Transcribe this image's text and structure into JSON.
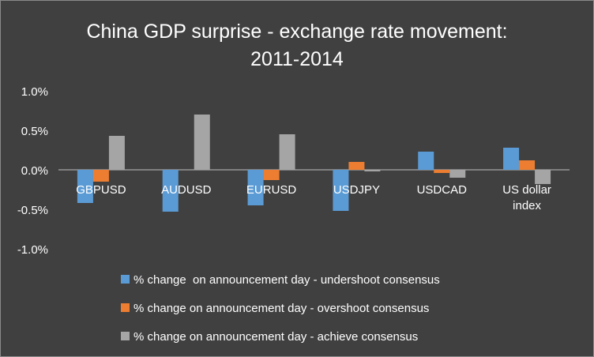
{
  "chart_data": {
    "type": "bar",
    "title": "China GDP surprise - exchange rate movement: 2011-2014",
    "title_lines": [
      "China GDP surprise - exchange rate movement:",
      "2011-2014"
    ],
    "categories": [
      "GBPUSD",
      "AUDUSD",
      "EURUSD",
      "USDJPY",
      "USDCAD",
      "US dollar index"
    ],
    "category_lines": [
      [
        "GBPUSD"
      ],
      [
        "AUDUSD"
      ],
      [
        "EURUSD"
      ],
      [
        "USDJPY"
      ],
      [
        "USDCAD"
      ],
      [
        "US dollar",
        "index"
      ]
    ],
    "series": [
      {
        "name": "% change  on announcement day - undershoot consensus",
        "color": "#5B9BD5",
        "values": [
          -0.42,
          -0.53,
          -0.45,
          -0.52,
          0.23,
          0.28
        ]
      },
      {
        "name": "% change on announcement day - overshoot consensus",
        "color": "#ED7D31",
        "values": [
          -0.15,
          0.0,
          -0.13,
          0.1,
          -0.04,
          0.12
        ]
      },
      {
        "name": "% change on announcement day - achieve consensus",
        "color": "#A5A5A5",
        "values": [
          0.43,
          0.7,
          0.45,
          -0.02,
          -0.1,
          -0.18
        ]
      }
    ],
    "ylim": [
      -1.0,
      1.0
    ],
    "yticks": [
      1.0,
      0.5,
      0.0,
      -0.5,
      -1.0
    ],
    "ytick_labels": [
      "1.0%",
      "0.5%",
      "0.0%",
      "-0.5%",
      "-1.0%"
    ],
    "xlabel": "",
    "ylabel": "",
    "grid": false,
    "legend_position": "bottom",
    "colors": {
      "background": "#404040",
      "text": "#FFFFFF",
      "axis": "#BFBFBF"
    }
  }
}
